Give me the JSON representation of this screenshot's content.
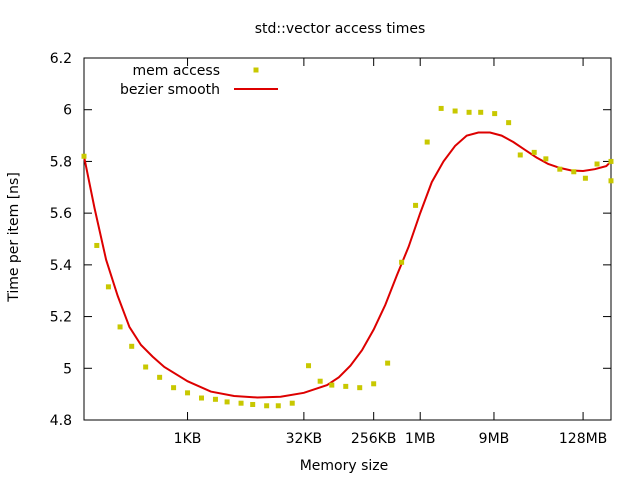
{
  "chart_data": {
    "type": "scatter",
    "title": "std::vector access times",
    "xlabel": "Memory size",
    "ylabel": "Time per item [ns]",
    "legend_position": "top-left",
    "grid": false,
    "x_scale": "log2",
    "xlim": [
      5.55,
      28.2
    ],
    "ylim": [
      4.8,
      6.2
    ],
    "xticks": [
      {
        "x": 10,
        "label": "1KB"
      },
      {
        "x": 15,
        "label": "32KB"
      },
      {
        "x": 18,
        "label": "256KB"
      },
      {
        "x": 20,
        "label": "1MB"
      },
      {
        "x": 23.17,
        "label": "9MB"
      },
      {
        "x": 27,
        "label": "128MB"
      }
    ],
    "yticks": [
      4.8,
      5.0,
      5.2,
      5.4,
      5.6,
      5.8,
      6.0,
      6.2
    ],
    "ytick_labels": [
      "4.8",
      "5",
      "5.2",
      "5.4",
      "5.6",
      "5.8",
      "6",
      "6.2"
    ],
    "series": [
      {
        "name": "mem access",
        "type": "scatter",
        "color": "#c8c800",
        "points": [
          [
            5.55,
            5.82
          ],
          [
            6.1,
            5.475
          ],
          [
            6.6,
            5.315
          ],
          [
            7.1,
            5.16
          ],
          [
            7.6,
            5.085
          ],
          [
            8.2,
            5.005
          ],
          [
            8.8,
            4.965
          ],
          [
            9.4,
            4.925
          ],
          [
            10.0,
            4.905
          ],
          [
            10.6,
            4.885
          ],
          [
            11.2,
            4.88
          ],
          [
            11.7,
            4.87
          ],
          [
            12.3,
            4.865
          ],
          [
            12.8,
            4.86
          ],
          [
            13.4,
            4.855
          ],
          [
            13.9,
            4.855
          ],
          [
            14.5,
            4.865
          ],
          [
            15.2,
            5.01
          ],
          [
            15.7,
            4.95
          ],
          [
            16.2,
            4.935
          ],
          [
            16.8,
            4.93
          ],
          [
            17.4,
            4.925
          ],
          [
            18.0,
            4.94
          ],
          [
            18.6,
            5.02
          ],
          [
            19.2,
            5.41
          ],
          [
            19.8,
            5.63
          ],
          [
            20.3,
            5.875
          ],
          [
            20.9,
            6.005
          ],
          [
            21.5,
            5.995
          ],
          [
            22.1,
            5.99
          ],
          [
            22.6,
            5.99
          ],
          [
            23.2,
            5.985
          ],
          [
            23.8,
            5.95
          ],
          [
            24.3,
            5.825
          ],
          [
            24.9,
            5.835
          ],
          [
            25.4,
            5.81
          ],
          [
            26.0,
            5.77
          ],
          [
            26.6,
            5.76
          ],
          [
            27.1,
            5.735
          ],
          [
            27.6,
            5.79
          ],
          [
            28.2,
            5.725
          ],
          [
            28.4,
            5.8
          ]
        ]
      },
      {
        "name": "bezier smooth",
        "type": "line",
        "color": "#dd0000",
        "points": [
          [
            5.55,
            5.82
          ],
          [
            6.0,
            5.62
          ],
          [
            6.5,
            5.42
          ],
          [
            7.0,
            5.28
          ],
          [
            7.5,
            5.16
          ],
          [
            8.0,
            5.09
          ],
          [
            8.5,
            5.045
          ],
          [
            9.0,
            5.005
          ],
          [
            10.0,
            4.95
          ],
          [
            11.0,
            4.91
          ],
          [
            12.0,
            4.893
          ],
          [
            13.0,
            4.887
          ],
          [
            14.0,
            4.89
          ],
          [
            15.0,
            4.905
          ],
          [
            16.0,
            4.935
          ],
          [
            16.5,
            4.965
          ],
          [
            17.0,
            5.01
          ],
          [
            17.5,
            5.07
          ],
          [
            18.0,
            5.15
          ],
          [
            18.5,
            5.245
          ],
          [
            19.0,
            5.36
          ],
          [
            19.5,
            5.47
          ],
          [
            20.0,
            5.6
          ],
          [
            20.5,
            5.72
          ],
          [
            21.0,
            5.8
          ],
          [
            21.5,
            5.86
          ],
          [
            22.0,
            5.9
          ],
          [
            22.5,
            5.912
          ],
          [
            23.0,
            5.912
          ],
          [
            23.5,
            5.9
          ],
          [
            24.0,
            5.875
          ],
          [
            24.5,
            5.845
          ],
          [
            25.0,
            5.815
          ],
          [
            25.5,
            5.79
          ],
          [
            26.0,
            5.775
          ],
          [
            26.5,
            5.765
          ],
          [
            27.0,
            5.763
          ],
          [
            27.5,
            5.77
          ],
          [
            28.0,
            5.782
          ],
          [
            28.4,
            5.8
          ]
        ]
      }
    ]
  }
}
